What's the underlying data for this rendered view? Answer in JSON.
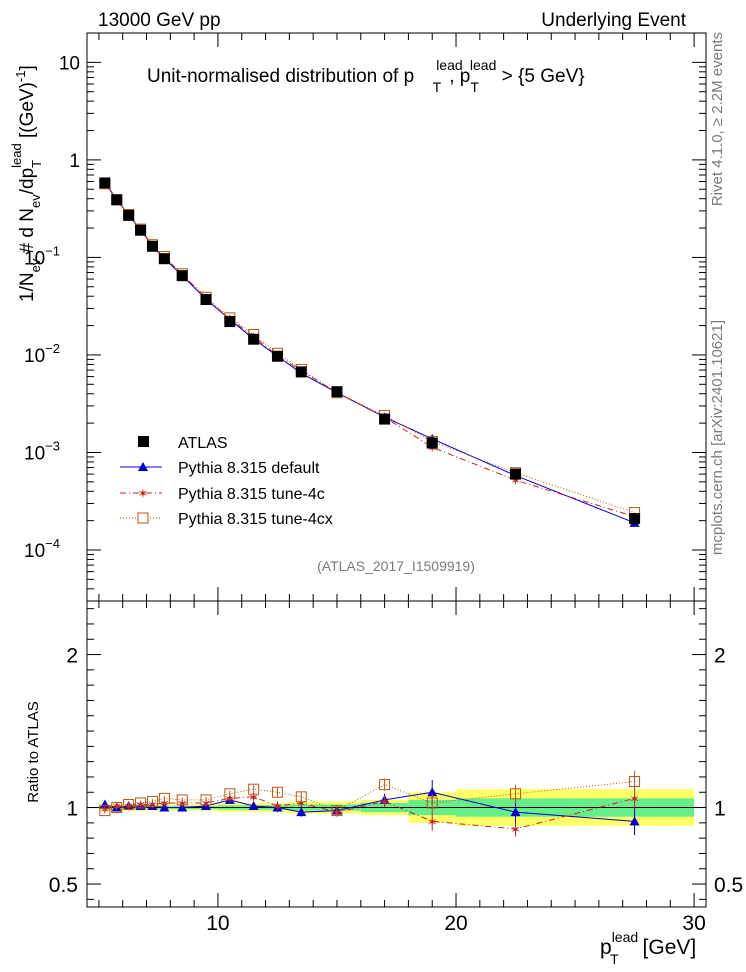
{
  "header": {
    "left": "13000 GeV pp",
    "right": "Underlying Event"
  },
  "side_labels": {
    "rivet": "Rivet 4.1.0, ≥ 2.2M events",
    "mcplots": "mcplots.cern.ch [arXiv:2401.10621]"
  },
  "colors": {
    "atlas": "#000000",
    "default": "#0000cc",
    "tune4c": "#cc2222",
    "tune4cx": "#bb5511",
    "band_inner": "#66ee88",
    "band_outer": "#ffff66"
  },
  "chart_data": [
    {
      "type": "scatter",
      "panel": "main",
      "title": "Unit-normalised distribution of p_T^lead, p_T^lead > {5 GeV}",
      "title_parts": {
        "prefix": "Unit-normalised distribution of p",
        "sup1": "lead",
        "sub1": "T",
        "mid": ", p",
        "sub2": "T",
        "sup2": "lead",
        "suffix": " > {5 GeV}"
      },
      "ylabel": "1/N_ev # d N_ev/dp_T^lead [(GeV)^-1]",
      "ylabel_parts": {
        "a": "1/N",
        "sub_ev1": "ev",
        "b": " # d N",
        "sub_ev2": "ev",
        "c": "/dp",
        "sub_T": "T",
        "sup_lead": "lead",
        "d": " [(GeV)",
        "sup_m1": "-1",
        "e": "]"
      },
      "yscale": "log",
      "ylim": [
        3e-05,
        20
      ],
      "xlim": [
        4.5,
        30.5
      ],
      "y_tick_labels": [
        {
          "v": 10,
          "base": "10",
          "exp": ""
        },
        {
          "v": 1,
          "base": "1",
          "exp": ""
        },
        {
          "v": 0.1,
          "base": "10",
          "exp": "−1"
        },
        {
          "v": 0.01,
          "base": "10",
          "exp": "−2"
        },
        {
          "v": 0.001,
          "base": "10",
          "exp": "−3"
        },
        {
          "v": 0.0001,
          "base": "10",
          "exp": "−4"
        }
      ],
      "watermark": "(ATLAS_2017_I1509919)",
      "legend": {
        "position": "lower-left",
        "entries": [
          "ATLAS",
          "Pythia 8.315 default",
          "Pythia 8.315 tune-4c",
          "Pythia 8.315 tune-4cx"
        ]
      },
      "x": [
        5.25,
        5.75,
        6.25,
        6.75,
        7.25,
        7.75,
        8.5,
        9.5,
        10.5,
        11.5,
        12.5,
        13.5,
        15,
        17,
        19,
        22.5,
        27.5
      ],
      "series": [
        {
          "name": "ATLAS",
          "style": "square-filled",
          "values": [
            0.58,
            0.39,
            0.27,
            0.19,
            0.13,
            0.097,
            0.065,
            0.037,
            0.022,
            0.0145,
            0.0097,
            0.0067,
            0.0042,
            0.0022,
            0.00125,
            0.0006,
            0.00021
          ]
        },
        {
          "name": "Pythia 8.315 default",
          "style": "triangle",
          "values": [
            0.59,
            0.39,
            0.272,
            0.192,
            0.131,
            0.097,
            0.065,
            0.0372,
            0.0231,
            0.0146,
            0.0097,
            0.0065,
            0.0041,
            0.0023,
            0.00138,
            0.00058,
            0.00019
          ]
        },
        {
          "name": "Pythia 8.315 tune-4c",
          "style": "star",
          "values": [
            0.575,
            0.395,
            0.273,
            0.193,
            0.133,
            0.1,
            0.067,
            0.038,
            0.0233,
            0.0155,
            0.0098,
            0.0069,
            0.0041,
            0.0023,
            0.00113,
            0.00052,
            0.00022
          ]
        },
        {
          "name": "Pythia 8.315 tune-4cx",
          "style": "square-open",
          "values": [
            0.57,
            0.39,
            0.275,
            0.195,
            0.135,
            0.102,
            0.068,
            0.039,
            0.024,
            0.0162,
            0.0104,
            0.0071,
            0.0041,
            0.0024,
            0.0013,
            0.00062,
            0.000242
          ]
        }
      ]
    },
    {
      "type": "scatter",
      "panel": "ratio",
      "ylabel": "Ratio to ATLAS",
      "xlabel": "p_T^lead [GeV]",
      "xlabel_parts": {
        "p": "p",
        "sup": "lead",
        "sub": "T",
        "unit": " [GeV]"
      },
      "ylim": [
        0.35,
        2.35
      ],
      "xlim": [
        4.5,
        30.5
      ],
      "x_tick_labels": [
        {
          "v": 10,
          "label": "10"
        },
        {
          "v": 20,
          "label": "20"
        },
        {
          "v": 30,
          "label": "30"
        }
      ],
      "y_tick_labels": [
        {
          "v": 2,
          "label": "2"
        },
        {
          "v": 1,
          "label": "1"
        },
        {
          "v": 0.5,
          "label": "0.5"
        }
      ],
      "bin_edges": [
        5,
        5.5,
        6,
        6.5,
        7,
        7.5,
        8,
        9,
        10,
        11,
        12,
        13,
        14,
        16,
        18,
        20,
        25,
        30
      ],
      "band_inner": [
        0.01,
        0.01,
        0.01,
        0.01,
        0.01,
        0.01,
        0.01,
        0.01,
        0.015,
        0.015,
        0.015,
        0.02,
        0.02,
        0.03,
        0.05,
        0.06,
        0.06
      ],
      "band_outer": [
        0.02,
        0.02,
        0.02,
        0.02,
        0.02,
        0.02,
        0.02,
        0.02,
        0.03,
        0.03,
        0.03,
        0.04,
        0.04,
        0.05,
        0.1,
        0.12,
        0.12
      ],
      "x": [
        5.25,
        5.75,
        6.25,
        6.75,
        7.25,
        7.75,
        8.5,
        9.5,
        10.5,
        11.5,
        12.5,
        13.5,
        15,
        17,
        19,
        22.5,
        27.5
      ],
      "series": [
        {
          "name": "Pythia 8.315 default",
          "style": "triangle",
          "values": [
            1.02,
            1.0,
            1.01,
            1.01,
            1.01,
            1.0,
            1.0,
            1.01,
            1.05,
            1.01,
            1.0,
            0.97,
            0.98,
            1.05,
            1.1,
            0.97,
            0.91
          ],
          "errors": [
            0.015,
            0.015,
            0.015,
            0.015,
            0.015,
            0.015,
            0.015,
            0.02,
            0.02,
            0.025,
            0.03,
            0.03,
            0.03,
            0.04,
            0.08,
            0.08,
            0.09
          ]
        },
        {
          "name": "Pythia 8.315 tune-4c",
          "style": "star",
          "values": [
            0.99,
            1.01,
            1.01,
            1.02,
            1.02,
            1.03,
            1.03,
            1.03,
            1.06,
            1.07,
            1.01,
            1.03,
            0.97,
            1.04,
            0.91,
            0.86,
            1.06
          ],
          "errors": [
            0.015,
            0.015,
            0.015,
            0.015,
            0.015,
            0.015,
            0.015,
            0.02,
            0.02,
            0.025,
            0.03,
            0.03,
            0.03,
            0.04,
            0.06,
            0.05,
            0.07
          ]
        },
        {
          "name": "Pythia 8.315 tune-4cx",
          "style": "square-open",
          "values": [
            0.98,
            1.0,
            1.02,
            1.03,
            1.04,
            1.06,
            1.05,
            1.05,
            1.09,
            1.12,
            1.1,
            1.07,
            0.98,
            1.15,
            1.03,
            1.09,
            1.17
          ],
          "errors": [
            0.015,
            0.015,
            0.015,
            0.015,
            0.015,
            0.015,
            0.015,
            0.02,
            0.02,
            0.025,
            0.03,
            0.03,
            0.03,
            0.04,
            0.06,
            0.06,
            0.07
          ]
        }
      ]
    }
  ]
}
